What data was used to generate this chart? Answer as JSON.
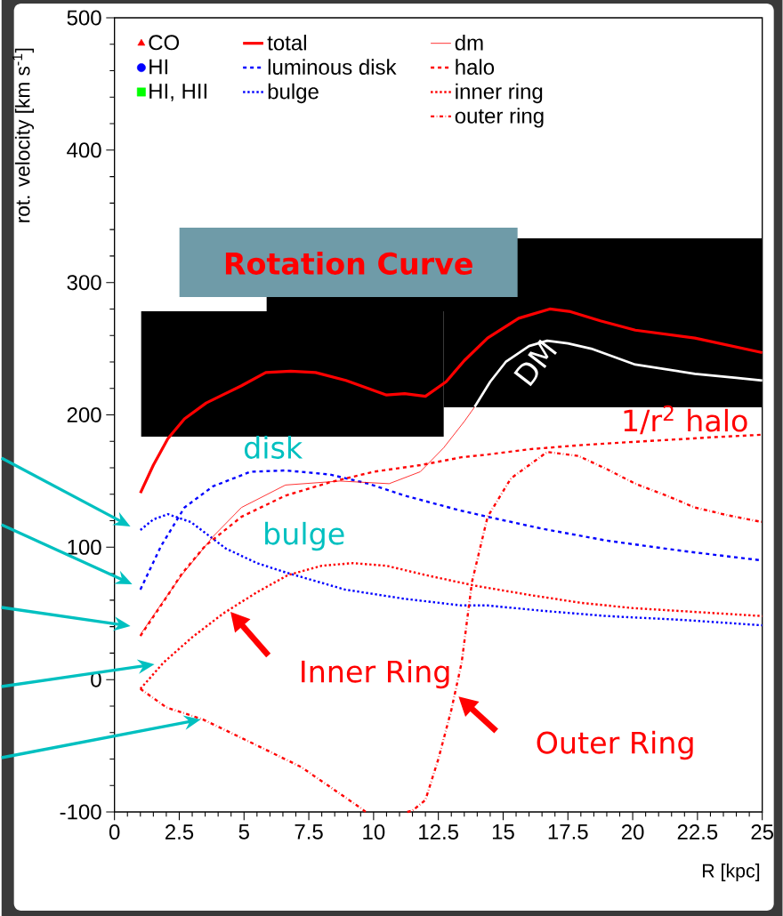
{
  "chart_data": {
    "type": "line",
    "xlabel": "R [kpc]",
    "ylabel": "rot. velocity [km s$^{-1}$]",
    "xlim": [
      0,
      25
    ],
    "ylim": [
      -100,
      500
    ],
    "xticks": [
      0,
      2.5,
      5,
      7.5,
      10,
      12.5,
      15,
      17.5,
      20,
      22.5,
      25
    ],
    "yticks": [
      -100,
      0,
      100,
      200,
      300,
      400,
      500
    ],
    "legend": "top left",
    "grid": false,
    "annotations": [
      "Rotation Curve",
      "disk",
      "bulge",
      "DM",
      "1/r$^{2}$ halo",
      {
        "text": "Inner Ring",
        "x": 4.4,
        "y": 50
      },
      {
        "text": "Outer Ring",
        "x": 13.2,
        "y": -14
      }
    ],
    "series": [
      {
        "name": "CO",
        "type": "scatter",
        "marker": "triangle",
        "color": "#ff0000"
      },
      {
        "name": "HI",
        "type": "scatter",
        "marker": "circle",
        "color": "#0000ff"
      },
      {
        "name": "HI, HII",
        "type": "scatter",
        "marker": "square",
        "color": "#00ff00"
      },
      {
        "name": "total",
        "type": "line",
        "line_style": "solid",
        "color": "#ff0000",
        "x": [
          1,
          1.5,
          2.06,
          2.7,
          3.54,
          4.9,
          5.84,
          6.8,
          7.76,
          8.93,
          10.5,
          11.2,
          12,
          12.8,
          13.5,
          14.4,
          15.6,
          16.8,
          17.6,
          18.75,
          20.1,
          22.4,
          25
        ],
        "values": [
          141,
          162,
          182,
          197,
          209,
          222,
          232,
          233,
          232,
          226,
          215,
          216,
          214,
          225,
          241,
          258,
          273,
          280,
          278,
          271,
          264,
          258,
          247
        ]
      },
      {
        "name": "luminous disk",
        "type": "line",
        "line_style": "dashed",
        "color": "#0000ff",
        "x": [
          1,
          1.8,
          2.7,
          3.8,
          5.25,
          6.6,
          8.3,
          9.8,
          11.2,
          13.3,
          14.4,
          16.5,
          19,
          22,
          25
        ],
        "values": [
          68,
          101,
          130,
          146,
          157,
          158,
          155,
          148,
          139,
          128,
          123,
          114,
          105,
          97,
          90
        ]
      },
      {
        "name": "bulge",
        "type": "line",
        "line_style": "dotted",
        "color": "#0000ff",
        "x": [
          1,
          1.5,
          2.06,
          2.95,
          4.3,
          5.5,
          6.6,
          8.9,
          11.2,
          13.4,
          14.4,
          16.5,
          19,
          22,
          25
        ],
        "values": [
          113,
          121,
          125,
          119,
          99,
          88,
          81,
          68,
          61,
          56,
          56,
          52,
          48,
          45,
          41
        ]
      },
      {
        "name": "dm",
        "type": "line",
        "line_style": "solid",
        "color": "#ff0000",
        "x": [
          1,
          1.8,
          2.6,
          3.8,
          4.9,
          6.6,
          8.7,
          10.6,
          11.8,
          12.7,
          13.5,
          13.9
        ],
        "values": [
          34,
          57,
          79,
          108,
          130,
          147,
          150,
          148,
          157,
          175,
          195,
          206
        ]
      },
      {
        "name": "halo",
        "type": "line",
        "line_style": "dashed",
        "color": "#ff0000",
        "x": [
          1,
          2,
          2.6,
          3.5,
          4.9,
          6.6,
          8.3,
          10,
          11.8,
          13.4,
          14.4,
          16,
          17.9,
          19.5,
          21.3,
          23,
          25
        ],
        "values": [
          33,
          62,
          80,
          101,
          123,
          139,
          149,
          157,
          162,
          168,
          170,
          174,
          177,
          179,
          181,
          183,
          185
        ]
      },
      {
        "name": "inner ring",
        "type": "line",
        "line_style": "dotted",
        "color": "#ff0000",
        "x": [
          1,
          1.9,
          3,
          4.2,
          5.5,
          6.7,
          8,
          9.2,
          10.5,
          12,
          13.9,
          16,
          18,
          20,
          22.5,
          25
        ],
        "values": [
          -7,
          13,
          32,
          50,
          66,
          79,
          86,
          88,
          86,
          79,
          71,
          64,
          58,
          54,
          51,
          48
        ]
      },
      {
        "name": "outer ring",
        "type": "line",
        "line_style": "dashdot",
        "color": "#ff0000",
        "x": [
          1,
          2,
          3.4,
          5,
          7.2,
          9.5,
          9.7,
          10.5,
          11.3,
          11.5,
          12,
          12.5,
          13,
          13.4,
          13.8,
          14.4,
          15.3,
          16.7,
          17.9,
          19,
          20.1,
          21.3,
          22.4,
          23.7,
          25
        ],
        "values": [
          -7,
          -21,
          -30,
          -45,
          -66,
          -97,
          -100,
          null,
          -100,
          -99,
          -91,
          -60,
          -23,
          13,
          74,
          123,
          152,
          172,
          169,
          159,
          148,
          139,
          130,
          124,
          119
        ]
      },
      {
        "type": "line",
        "line_style": "solid",
        "color": "#ffffff",
        "x": [
          13.9,
          14.5,
          15.1,
          16,
          16.7,
          17.5,
          18.4,
          20.1,
          22.4,
          24,
          25
        ],
        "values": [
          206,
          225,
          240,
          252,
          256,
          254,
          250,
          238,
          231,
          228,
          226
        ]
      }
    ]
  }
}
